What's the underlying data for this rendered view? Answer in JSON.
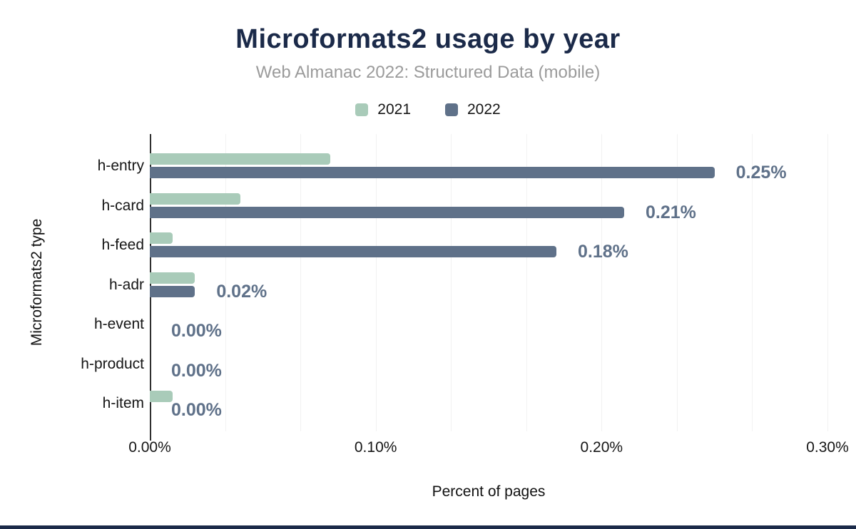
{
  "chart_data": {
    "type": "bar",
    "orientation": "horizontal",
    "title": "Microformats2 usage by year",
    "subtitle": "Web Almanac 2022: Structured Data (mobile)",
    "categories": [
      "h-entry",
      "h-card",
      "h-feed",
      "h-adr",
      "h-event",
      "h-product",
      "h-item"
    ],
    "series": [
      {
        "name": "2021",
        "color": "#a9cbb9",
        "values": [
          0.08,
          0.04,
          0.01,
          0.02,
          0.0,
          0.0,
          0.01
        ]
      },
      {
        "name": "2022",
        "color": "#5f7189",
        "values": [
          0.25,
          0.21,
          0.18,
          0.02,
          0.0,
          0.0,
          0.0
        ]
      }
    ],
    "value_labels": {
      "labeled_series": "2022",
      "labels": [
        "0.25%",
        "0.21%",
        "0.18%",
        "0.02%",
        "0.00%",
        "0.00%",
        "0.00%"
      ]
    },
    "xlabel": "Percent of pages",
    "ylabel": "Microformats2 type",
    "x_ticks": [
      "0.00%",
      "0.10%",
      "0.20%",
      "0.30%"
    ],
    "xlim": [
      0,
      0.3
    ],
    "legend_position": "top",
    "grid": {
      "vertical_divisions": 9,
      "color": "#f2f2f2"
    },
    "colors": {
      "title": "#1b2a49",
      "subtitle": "#9b9b9b",
      "value_label": "#5f7189",
      "axis_line": "#2f2f2f",
      "footer_accent": "#1b2a49"
    }
  }
}
